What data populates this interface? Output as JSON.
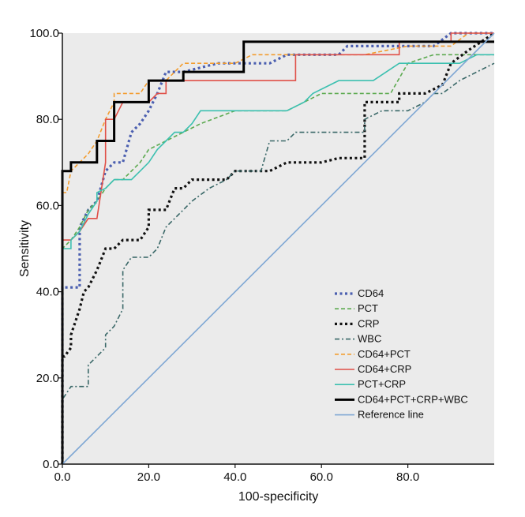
{
  "chart_data": {
    "type": "line",
    "xlabel": "100-specificity",
    "ylabel": "Sensitivity",
    "xlim": [
      0,
      100
    ],
    "ylim": [
      0,
      100
    ],
    "xticks": [
      "0.0",
      "20.0",
      "40.0",
      "60.0",
      "80.0"
    ],
    "xtick_values": [
      0,
      20,
      40,
      60,
      80
    ],
    "yticks": [
      "0.0",
      "20.0",
      "40.0",
      "60.0",
      "80.0",
      "100.0"
    ],
    "ytick_values": [
      0,
      20,
      40,
      60,
      80,
      100
    ],
    "grid": false,
    "legend_position": "bottom-right",
    "plot_background": "#ebebeb",
    "series": [
      {
        "name": "CD64",
        "color": "#4b5fb0",
        "dash": "dotted-bold",
        "x": [
          0,
          0,
          2,
          4,
          4,
          6,
          8,
          10,
          12,
          14,
          16,
          18,
          20,
          22,
          24,
          26,
          28,
          36,
          44,
          48,
          52,
          54,
          56,
          60,
          64,
          66,
          68,
          74,
          80,
          86,
          90,
          94,
          100
        ],
        "y": [
          0,
          41,
          41,
          41,
          55,
          59,
          61,
          68,
          70,
          70,
          77,
          79,
          82,
          86,
          91,
          91,
          91,
          93,
          93,
          93,
          95,
          95,
          95,
          95,
          95,
          97,
          97,
          97,
          97,
          97,
          100,
          100,
          100
        ]
      },
      {
        "name": "PCT",
        "color": "#5caa50",
        "dash": "dashed",
        "x": [
          0,
          0,
          2,
          4,
          6,
          8,
          10,
          12,
          14,
          16,
          18,
          20,
          24,
          28,
          32,
          40,
          48,
          52,
          56,
          60,
          64,
          70,
          76,
          80,
          86,
          90,
          94,
          100
        ],
        "y": [
          0,
          50,
          52,
          55,
          59,
          61,
          64,
          66,
          66,
          68,
          70,
          73,
          75,
          77,
          79,
          82,
          82,
          82,
          84,
          86,
          86,
          86,
          86,
          93,
          95,
          95,
          95,
          95
        ]
      },
      {
        "name": "CRP",
        "color": "#111111",
        "dash": "dotted-bold",
        "x": [
          0,
          0,
          0.5,
          2,
          2,
          4,
          5,
          6,
          8,
          10,
          12,
          14,
          16,
          18,
          20,
          20,
          22,
          24,
          26,
          28,
          30,
          32,
          34,
          38,
          40,
          44,
          48,
          52,
          56,
          60,
          64,
          70,
          70,
          78,
          78,
          82,
          84,
          88,
          90,
          94,
          100
        ],
        "y": [
          0,
          25,
          25,
          27,
          30,
          36,
          40,
          41,
          45,
          50,
          50,
          52,
          52,
          52,
          55,
          59,
          59,
          59,
          64,
          64,
          66,
          66,
          66,
          66,
          68,
          68,
          68,
          70,
          70,
          70,
          71,
          71,
          84,
          84,
          86,
          86,
          86,
          88,
          93,
          96,
          100
        ]
      },
      {
        "name": "WBC",
        "color": "#3a6868",
        "dash": "dash-dot",
        "x": [
          0,
          0,
          2,
          4,
          6,
          6,
          10,
          10,
          12,
          14,
          14,
          16,
          18,
          20,
          22,
          24,
          26,
          28,
          30,
          34,
          38,
          40,
          44,
          46,
          48,
          50,
          52,
          54,
          56,
          60,
          64,
          66,
          68,
          70,
          70,
          74,
          80,
          84,
          86,
          88,
          92,
          96,
          100
        ],
        "y": [
          0,
          15,
          18,
          18,
          18,
          23,
          27,
          30,
          32,
          36,
          45,
          48,
          48,
          48,
          50,
          55,
          57,
          59,
          61,
          64,
          66,
          68,
          68,
          68,
          75,
          75,
          75,
          77,
          77,
          77,
          77,
          77,
          77,
          77,
          80,
          82,
          82,
          84,
          86,
          86,
          89,
          91,
          93
        ]
      },
      {
        "name": "CD64+PCT",
        "color": "#f39c2e",
        "dash": "dashed",
        "x": [
          0,
          0,
          1,
          2,
          4,
          6,
          8,
          10,
          12,
          12,
          14,
          16,
          18,
          20,
          22,
          24,
          26,
          28,
          30,
          40,
          44,
          48,
          52,
          60,
          70,
          80,
          90,
          94,
          100
        ],
        "y": [
          0,
          63,
          63,
          68,
          70,
          72,
          75,
          80,
          84,
          86,
          86,
          86,
          86,
          89,
          89,
          89,
          91,
          93,
          93,
          93,
          95,
          95,
          95,
          95,
          95,
          97,
          97,
          100,
          100
        ]
      },
      {
        "name": "CD64+CRP",
        "color": "#e05048",
        "dash": "solid",
        "x": [
          0,
          0,
          2,
          4,
          6,
          8,
          10,
          10,
          12,
          14,
          16,
          18,
          20,
          22,
          24,
          24,
          34,
          54,
          54,
          78,
          78,
          90,
          90,
          100
        ],
        "y": [
          0,
          52,
          52,
          54,
          57,
          57,
          70,
          80,
          80,
          84,
          84,
          84,
          84,
          86,
          86,
          89,
          89,
          89,
          95,
          95,
          98,
          98,
          100,
          100
        ]
      },
      {
        "name": "PCT+CRP",
        "color": "#3cc0b0",
        "dash": "solid",
        "x": [
          0,
          0,
          2,
          2,
          4,
          6,
          8,
          8,
          10,
          12,
          14,
          16,
          18,
          20,
          22,
          24,
          26,
          28,
          30,
          32,
          36,
          40,
          44,
          48,
          52,
          56,
          58,
          64,
          68,
          72,
          78,
          86,
          88,
          92,
          96,
          100
        ],
        "y": [
          0,
          50,
          50,
          52,
          54,
          58,
          61,
          63,
          64,
          66,
          66,
          66,
          68,
          70,
          73,
          75,
          77,
          77,
          79,
          82,
          82,
          82,
          82,
          82,
          82,
          84,
          86,
          89,
          89,
          89,
          93,
          93,
          93,
          93,
          95,
          95
        ]
      },
      {
        "name": "CD64+PCT+CRP+WBC",
        "color": "#000000",
        "dash": "solid-bold",
        "x": [
          0,
          0,
          2,
          2,
          4,
          8,
          8,
          12,
          12,
          16,
          20,
          20,
          24,
          24,
          28,
          28,
          42,
          42,
          100
        ],
        "y": [
          0,
          68,
          68,
          70,
          70,
          70,
          75,
          75,
          84,
          84,
          84,
          89,
          89,
          89,
          89,
          91,
          91,
          98,
          98
        ]
      },
      {
        "name": "Reference line",
        "color": "#7fa7d4",
        "dash": "solid",
        "x": [
          0,
          100
        ],
        "y": [
          0,
          100
        ]
      }
    ]
  }
}
